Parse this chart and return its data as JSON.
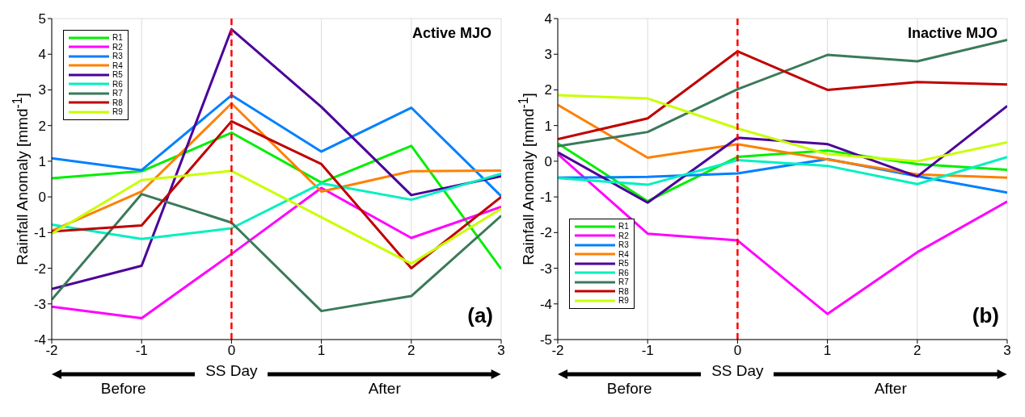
{
  "chart_data": [
    {
      "type": "line",
      "title": "Active MJO",
      "xlabel": "SS Day",
      "ylabel": "Rainfall Anomaly [mmd$^{-1}$]",
      "annotations": [
        "(a)",
        "Before",
        "After"
      ],
      "x": [
        -2,
        -1,
        0,
        1,
        2,
        3
      ],
      "xlim": [
        -2,
        3
      ],
      "xticks": [
        -2,
        -1,
        0,
        1,
        2,
        3
      ],
      "ylim": [
        -4,
        5
      ],
      "yticks": [
        -4,
        -3,
        -2,
        -1,
        0,
        1,
        2,
        3,
        4,
        5
      ],
      "grid": true,
      "legend": "top left",
      "line_style": "solid",
      "ref_lines": [
        {
          "axis": "x",
          "value": 0,
          "color": "#ff0000",
          "line_style": "dashed"
        }
      ],
      "series": [
        {
          "name": "R1",
          "color": "#00ee00",
          "values": [
            0.52,
            0.72,
            1.8,
            0.4,
            1.43,
            -2.02
          ]
        },
        {
          "name": "R2",
          "color": "#ff00ff",
          "values": [
            -3.08,
            -3.4,
            -1.6,
            0.25,
            -1.15,
            -0.28
          ]
        },
        {
          "name": "R3",
          "color": "#0080ff",
          "values": [
            1.08,
            0.75,
            2.85,
            1.27,
            2.5,
            0.02
          ]
        },
        {
          "name": "R4",
          "color": "#ff8000",
          "values": [
            -0.95,
            0.15,
            2.62,
            0.15,
            0.72,
            0.74
          ]
        },
        {
          "name": "R5",
          "color": "#4b0099",
          "values": [
            -2.58,
            -1.93,
            4.7,
            2.52,
            0.05,
            0.58
          ]
        },
        {
          "name": "R6",
          "color": "#00f0c0",
          "values": [
            -0.78,
            -1.18,
            -0.88,
            0.38,
            -0.08,
            0.65
          ]
        },
        {
          "name": "R7",
          "color": "#3a7a5a",
          "values": [
            -2.88,
            0.08,
            -0.72,
            -3.2,
            -2.78,
            -0.53
          ]
        },
        {
          "name": "R8",
          "color": "#c00000",
          "values": [
            -0.97,
            -0.8,
            2.12,
            0.92,
            -2.0,
            0.0
          ]
        },
        {
          "name": "R9",
          "color": "#c8ff00",
          "values": [
            -1.03,
            0.47,
            0.73,
            -0.57,
            -1.87,
            -0.33
          ]
        }
      ]
    },
    {
      "type": "line",
      "title": "Inactive MJO",
      "xlabel": "SS Day",
      "ylabel": "Rainfall Anomaly [mmd$^{-1}$]",
      "annotations": [
        "(b)",
        "Before",
        "After"
      ],
      "x": [
        -2,
        -1,
        0,
        1,
        2,
        3
      ],
      "xlim": [
        -2,
        3
      ],
      "xticks": [
        -2,
        -1,
        0,
        1,
        2,
        3
      ],
      "ylim": [
        -5,
        4
      ],
      "yticks": [
        -5,
        -4,
        -3,
        -2,
        -1,
        0,
        1,
        2,
        3,
        4
      ],
      "grid": true,
      "legend": "bottom left",
      "line_style": "solid",
      "ref_lines": [
        {
          "axis": "x",
          "value": 0,
          "color": "#ff0000",
          "line_style": "dashed"
        }
      ],
      "series": [
        {
          "name": "R1",
          "color": "#00ee00",
          "values": [
            0.5,
            -1.12,
            0.12,
            0.3,
            -0.08,
            -0.24
          ]
        },
        {
          "name": "R2",
          "color": "#ff00ff",
          "values": [
            0.2,
            -2.03,
            -2.22,
            -4.28,
            -2.55,
            -1.13
          ]
        },
        {
          "name": "R3",
          "color": "#0080ff",
          "values": [
            -0.46,
            -0.44,
            -0.34,
            0.06,
            -0.42,
            -0.88
          ]
        },
        {
          "name": "R4",
          "color": "#ff8000",
          "values": [
            1.58,
            0.1,
            0.48,
            0.05,
            -0.37,
            -0.46
          ]
        },
        {
          "name": "R5",
          "color": "#4b0099",
          "values": [
            0.25,
            -1.16,
            0.66,
            0.48,
            -0.43,
            1.55
          ]
        },
        {
          "name": "R6",
          "color": "#00f0c0",
          "values": [
            -0.47,
            -0.66,
            0.03,
            -0.13,
            -0.64,
            0.12
          ]
        },
        {
          "name": "R7",
          "color": "#3a7a5a",
          "values": [
            0.42,
            0.82,
            2.02,
            2.98,
            2.8,
            3.4
          ]
        },
        {
          "name": "R8",
          "color": "#c00000",
          "values": [
            0.62,
            1.2,
            3.08,
            2.0,
            2.22,
            2.15
          ]
        },
        {
          "name": "R9",
          "color": "#c8ff00",
          "values": [
            1.85,
            1.76,
            0.92,
            0.2,
            0.0,
            0.53
          ]
        }
      ]
    }
  ]
}
